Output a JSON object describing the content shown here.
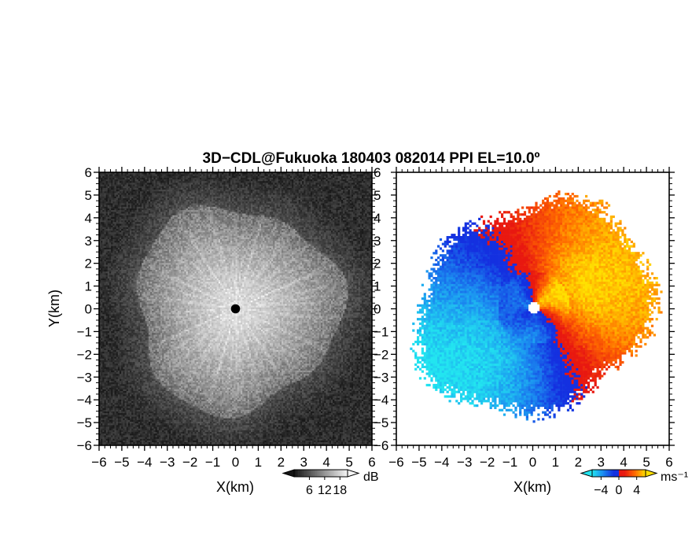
{
  "title": "3D−CDL@Fukuoka 180403 082014 PPI EL=10.0º",
  "chart_data": [
    {
      "type": "heatmap",
      "panel": "reflectivity / SNR (left)",
      "title": "3D−CDL@Fukuoka 180403 082014 PPI EL=10.0º",
      "xlabel": "X(km)",
      "ylabel": "Y(km)",
      "xlim": [
        -6,
        6
      ],
      "ylim": [
        -6,
        6
      ],
      "xticks": [
        "−6",
        "−5",
        "−4",
        "−3",
        "−2",
        "−1",
        "0",
        "1",
        "2",
        "3",
        "4",
        "5",
        "6"
      ],
      "yticks": [
        "−6",
        "−5",
        "−4",
        "−3",
        "−2",
        "−1",
        "0",
        "1",
        "2",
        "3",
        "4",
        "5",
        "6"
      ],
      "colormap": "grayscale",
      "colorbar": {
        "label": "dB",
        "ticks": [
          "6",
          "12",
          "18"
        ],
        "range": [
          0,
          21
        ],
        "extend": "both"
      },
      "features": {
        "echo_radius_km": 4.5,
        "center_blank_radius_km": 0.2,
        "center_value_dB": 18,
        "edge_value_dB": 9,
        "background_value_dB": 2
      }
    },
    {
      "type": "heatmap",
      "panel": "radial velocity (right)",
      "xlabel": "X(km)",
      "xlim": [
        -6,
        6
      ],
      "ylim": [
        -6,
        6
      ],
      "xticks": [
        "−6",
        "−5",
        "−4",
        "−3",
        "−2",
        "−1",
        "0",
        "1",
        "2",
        "3",
        "4",
        "5",
        "6"
      ],
      "yticks": [
        "−6",
        "−5",
        "−4",
        "−3",
        "−2",
        "−1",
        "0",
        "1",
        "2",
        "3",
        "4",
        "5",
        "6"
      ],
      "colormap": "cyan-blue-red-yellow (diverging)",
      "colorbar": {
        "label": "ms⁻¹",
        "ticks": [
          "−4",
          "0",
          "4"
        ],
        "range": [
          -6,
          6
        ],
        "extend": "both",
        "colors": [
          "#22e5f0",
          "#1b8cf0",
          "#1430e0",
          "#e81810",
          "#ff6a00",
          "#ffe000"
        ]
      },
      "features": {
        "flow_direction_deg_from_north": 60,
        "max_speed_ms": 5.5,
        "approx_echo_radius_km": 4.8
      }
    }
  ]
}
